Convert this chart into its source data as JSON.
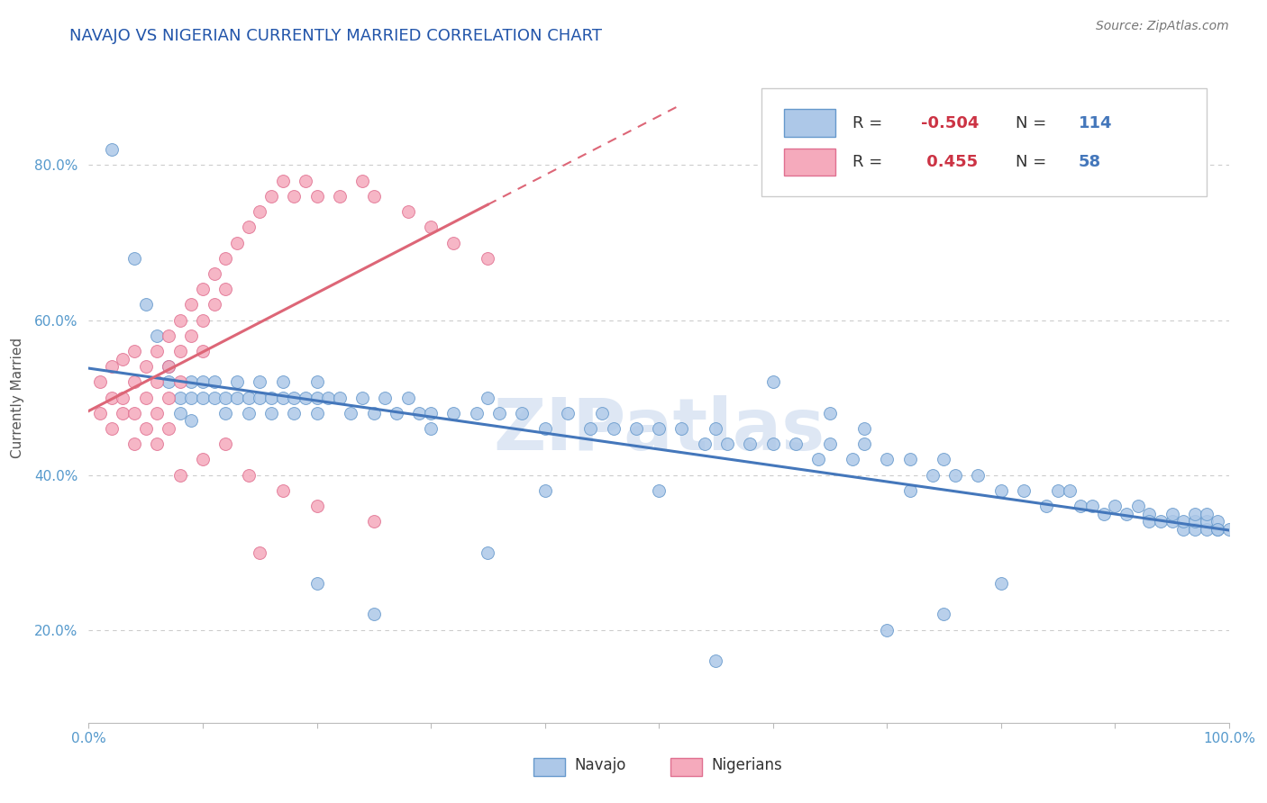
{
  "title": "NAVAJO VS NIGERIAN CURRENTLY MARRIED CORRELATION CHART",
  "source": "Source: ZipAtlas.com",
  "ylabel": "Currently Married",
  "ytick_values": [
    0.2,
    0.4,
    0.6,
    0.8
  ],
  "xlim": [
    0.0,
    1.0
  ],
  "ylim": [
    0.08,
    0.92
  ],
  "navajo_R": -0.504,
  "navajo_N": 114,
  "nigerian_R": 0.455,
  "nigerian_N": 58,
  "navajo_color": "#adc8e8",
  "nigerian_color": "#f5aabc",
  "navajo_edge_color": "#6699cc",
  "nigerian_edge_color": "#e07090",
  "navajo_line_color": "#4477bb",
  "nigerian_line_color": "#dd6677",
  "legend_label_navajo": "Navajo",
  "legend_label_nigerian": "Nigerians",
  "watermark": "ZIPatlas",
  "watermark_color": "#c8d8ee",
  "title_color": "#2255aa",
  "axis_label_color": "#5599cc",
  "r_value_color": "#cc3344",
  "n_value_color": "#4477bb",
  "navajo_scatter_x": [
    0.02,
    0.04,
    0.05,
    0.06,
    0.07,
    0.07,
    0.08,
    0.08,
    0.09,
    0.09,
    0.09,
    0.1,
    0.1,
    0.11,
    0.11,
    0.12,
    0.12,
    0.13,
    0.13,
    0.14,
    0.14,
    0.15,
    0.15,
    0.16,
    0.16,
    0.17,
    0.17,
    0.18,
    0.18,
    0.19,
    0.2,
    0.2,
    0.2,
    0.21,
    0.22,
    0.23,
    0.24,
    0.25,
    0.26,
    0.27,
    0.28,
    0.29,
    0.3,
    0.32,
    0.34,
    0.35,
    0.36,
    0.38,
    0.4,
    0.42,
    0.44,
    0.45,
    0.46,
    0.48,
    0.5,
    0.52,
    0.54,
    0.55,
    0.56,
    0.58,
    0.6,
    0.62,
    0.64,
    0.65,
    0.67,
    0.68,
    0.7,
    0.72,
    0.74,
    0.75,
    0.76,
    0.78,
    0.8,
    0.82,
    0.84,
    0.85,
    0.86,
    0.87,
    0.88,
    0.89,
    0.9,
    0.91,
    0.92,
    0.93,
    0.93,
    0.94,
    0.95,
    0.95,
    0.96,
    0.96,
    0.97,
    0.97,
    0.97,
    0.98,
    0.98,
    0.98,
    0.99,
    0.99,
    0.99,
    1.0,
    0.3,
    0.55,
    0.7,
    0.75,
    0.8,
    0.5,
    0.6,
    0.65,
    0.68,
    0.72,
    0.2,
    0.25,
    0.35,
    0.4
  ],
  "navajo_scatter_y": [
    0.82,
    0.68,
    0.62,
    0.58,
    0.54,
    0.52,
    0.5,
    0.48,
    0.5,
    0.47,
    0.52,
    0.52,
    0.5,
    0.5,
    0.52,
    0.5,
    0.48,
    0.52,
    0.5,
    0.5,
    0.48,
    0.5,
    0.52,
    0.5,
    0.48,
    0.5,
    0.52,
    0.5,
    0.48,
    0.5,
    0.52,
    0.5,
    0.48,
    0.5,
    0.5,
    0.48,
    0.5,
    0.48,
    0.5,
    0.48,
    0.5,
    0.48,
    0.48,
    0.48,
    0.48,
    0.5,
    0.48,
    0.48,
    0.46,
    0.48,
    0.46,
    0.48,
    0.46,
    0.46,
    0.46,
    0.46,
    0.44,
    0.46,
    0.44,
    0.44,
    0.44,
    0.44,
    0.42,
    0.44,
    0.42,
    0.44,
    0.42,
    0.42,
    0.4,
    0.42,
    0.4,
    0.4,
    0.38,
    0.38,
    0.36,
    0.38,
    0.38,
    0.36,
    0.36,
    0.35,
    0.36,
    0.35,
    0.36,
    0.35,
    0.34,
    0.34,
    0.34,
    0.35,
    0.33,
    0.34,
    0.33,
    0.34,
    0.35,
    0.33,
    0.34,
    0.35,
    0.33,
    0.34,
    0.33,
    0.33,
    0.46,
    0.16,
    0.2,
    0.22,
    0.26,
    0.38,
    0.52,
    0.48,
    0.46,
    0.38,
    0.26,
    0.22,
    0.3,
    0.38
  ],
  "nigerian_scatter_x": [
    0.01,
    0.01,
    0.02,
    0.02,
    0.02,
    0.03,
    0.03,
    0.03,
    0.04,
    0.04,
    0.04,
    0.04,
    0.05,
    0.05,
    0.05,
    0.06,
    0.06,
    0.06,
    0.06,
    0.07,
    0.07,
    0.07,
    0.07,
    0.08,
    0.08,
    0.08,
    0.09,
    0.09,
    0.1,
    0.1,
    0.1,
    0.11,
    0.11,
    0.12,
    0.12,
    0.13,
    0.14,
    0.15,
    0.16,
    0.17,
    0.18,
    0.19,
    0.2,
    0.22,
    0.24,
    0.25,
    0.28,
    0.3,
    0.32,
    0.35,
    0.08,
    0.1,
    0.14,
    0.17,
    0.2,
    0.25,
    0.15,
    0.12
  ],
  "nigerian_scatter_y": [
    0.48,
    0.52,
    0.5,
    0.46,
    0.54,
    0.5,
    0.48,
    0.55,
    0.52,
    0.48,
    0.56,
    0.44,
    0.54,
    0.5,
    0.46,
    0.56,
    0.52,
    0.48,
    0.44,
    0.58,
    0.54,
    0.5,
    0.46,
    0.6,
    0.56,
    0.52,
    0.62,
    0.58,
    0.64,
    0.6,
    0.56,
    0.66,
    0.62,
    0.68,
    0.64,
    0.7,
    0.72,
    0.74,
    0.76,
    0.78,
    0.76,
    0.78,
    0.76,
    0.76,
    0.78,
    0.76,
    0.74,
    0.72,
    0.7,
    0.68,
    0.4,
    0.42,
    0.4,
    0.38,
    0.36,
    0.34,
    0.3,
    0.44
  ]
}
